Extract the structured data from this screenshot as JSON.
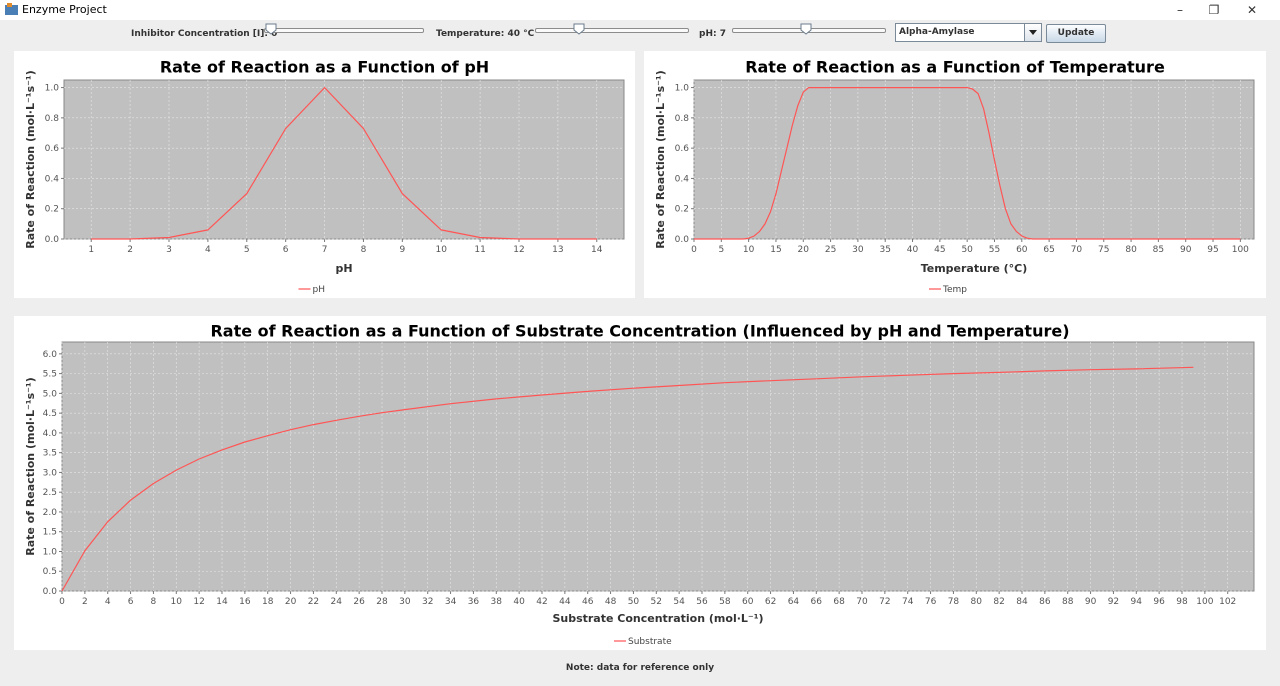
{
  "window": {
    "title": "Enzyme Project",
    "minimize": "–",
    "restore": "❐",
    "close": "✕"
  },
  "controls": {
    "inhibitor_label": "Inhibitor Concentration [I]: 0",
    "inhibitor_value": 0,
    "temperature_label": "Temperature: 40 °C",
    "temperature_value": 0.26,
    "ph_label": "pH: 7",
    "ph_value": 0.47,
    "enzyme_selected": "Alpha-Amylase",
    "update_button": "Update"
  },
  "colors": {
    "plot_bg": "#c0c0c0",
    "series": "#ff5555",
    "grid": "#e6e6e6"
  },
  "chart_data": [
    {
      "type": "line",
      "title": "Rate of Reaction as a Function of pH",
      "xlabel": "pH",
      "ylabel": "Rate of Reaction (mol·L⁻¹s⁻¹)",
      "xlim": [
        0.3,
        14.7
      ],
      "ylim": [
        0,
        1.05
      ],
      "xticks": [
        1,
        2,
        3,
        4,
        5,
        6,
        7,
        8,
        9,
        10,
        11,
        12,
        13,
        14
      ],
      "yticks": [
        0.0,
        0.2,
        0.4,
        0.6,
        0.8,
        1.0
      ],
      "xdec": 0,
      "ydec": 1,
      "series": [
        {
          "name": "pH",
          "x": [
            1,
            2,
            3,
            4,
            5,
            6,
            7,
            8,
            9,
            10,
            11,
            12,
            13,
            14
          ],
          "y": [
            0.0,
            0.0,
            0.01,
            0.06,
            0.3,
            0.73,
            1.0,
            0.73,
            0.3,
            0.06,
            0.01,
            0.0,
            0.0,
            0.0
          ]
        }
      ],
      "grid": true,
      "legend": "bottom-center"
    },
    {
      "type": "line",
      "title": "Rate of Reaction as a Function of Temperature",
      "xlabel": "Temperature (°C)",
      "ylabel": "Rate of Reaction (mol·L⁻¹s⁻¹)",
      "xlim": [
        0,
        102.5
      ],
      "ylim": [
        0,
        1.05
      ],
      "xticks": [
        0,
        5,
        10,
        15,
        20,
        25,
        30,
        35,
        40,
        45,
        50,
        55,
        60,
        65,
        70,
        75,
        80,
        85,
        90,
        95,
        100
      ],
      "yticks": [
        0.0,
        0.2,
        0.4,
        0.6,
        0.8,
        1.0
      ],
      "xdec": 0,
      "ydec": 1,
      "series": [
        {
          "name": "Temp",
          "x": [
            0,
            9,
            10,
            11,
            12,
            13,
            14,
            15,
            16,
            17,
            18,
            19,
            20,
            21,
            50,
            51,
            52,
            53,
            54,
            55,
            56,
            57,
            58,
            59,
            60,
            61,
            62,
            100
          ],
          "y": [
            0,
            0,
            0.005,
            0.02,
            0.05,
            0.1,
            0.18,
            0.3,
            0.45,
            0.6,
            0.75,
            0.88,
            0.97,
            1.0,
            1.0,
            0.99,
            0.96,
            0.86,
            0.7,
            0.52,
            0.35,
            0.2,
            0.1,
            0.05,
            0.02,
            0.005,
            0,
            0
          ]
        }
      ],
      "grid": true,
      "legend": "bottom-center"
    },
    {
      "type": "line",
      "title": "Rate of Reaction as a Function of Substrate Concentration (Influenced by pH and Temperature)",
      "xlabel": "Substrate Concentration (mol·L⁻¹)",
      "ylabel": "Rate of Reaction (mol·L⁻¹s⁻¹)",
      "xlim": [
        0,
        104.3
      ],
      "ylim": [
        0,
        6.3
      ],
      "xticks": [
        0,
        2,
        4,
        6,
        8,
        10,
        12,
        14,
        16,
        18,
        20,
        22,
        24,
        26,
        28,
        30,
        32,
        34,
        36,
        38,
        40,
        42,
        44,
        46,
        48,
        50,
        52,
        54,
        56,
        58,
        60,
        62,
        64,
        66,
        68,
        70,
        72,
        74,
        76,
        78,
        80,
        82,
        84,
        86,
        88,
        90,
        92,
        94,
        96,
        98,
        100,
        102
      ],
      "yticks": [
        0.0,
        0.5,
        1.0,
        1.5,
        2.0,
        2.5,
        3.0,
        3.5,
        4.0,
        4.5,
        5.0,
        5.5,
        6.0
      ],
      "xdec": 0,
      "ydec": 1,
      "series": [
        {
          "name": "Substrate",
          "x": [
            0,
            2,
            4,
            6,
            8,
            10,
            12,
            14,
            16,
            18,
            20,
            22,
            24,
            26,
            28,
            30,
            34,
            38,
            42,
            46,
            50,
            54,
            58,
            62,
            66,
            70,
            74,
            78,
            82,
            86,
            90,
            94,
            99
          ],
          "y": [
            0,
            1.02,
            1.75,
            2.3,
            2.72,
            3.06,
            3.34,
            3.57,
            3.77,
            3.93,
            4.08,
            4.21,
            4.32,
            4.42,
            4.51,
            4.59,
            4.74,
            4.86,
            4.96,
            5.05,
            5.13,
            5.2,
            5.27,
            5.32,
            5.37,
            5.42,
            5.46,
            5.5,
            5.53,
            5.57,
            5.6,
            5.62,
            5.66
          ]
        }
      ],
      "grid": true,
      "legend": "bottom-center"
    }
  ],
  "footer": {
    "note": "Note: data for reference only"
  }
}
